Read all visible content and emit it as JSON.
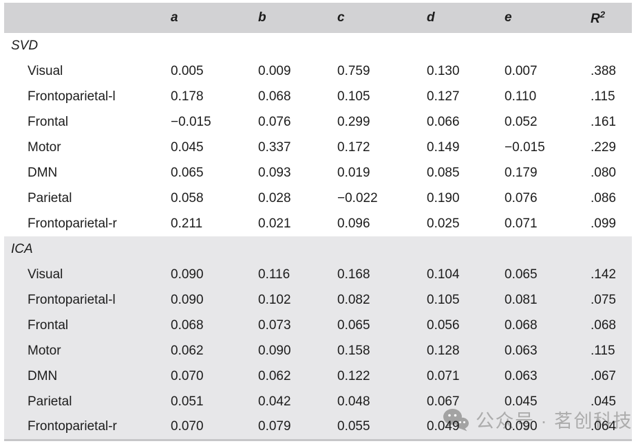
{
  "table": {
    "column_headers": [
      "a",
      "b",
      "c",
      "d",
      "e"
    ],
    "r2_header": {
      "base": "R",
      "superscript": "2"
    },
    "sections": [
      {
        "label": "SVD",
        "rows": [
          {
            "label": "Visual",
            "values": [
              "0.005",
              "0.009",
              "0.759",
              "0.130",
              "0.007",
              ".388"
            ]
          },
          {
            "label": "Frontoparietal-l",
            "values": [
              "0.178",
              "0.068",
              "0.105",
              "0.127",
              "0.110",
              ".115"
            ]
          },
          {
            "label": "Frontal",
            "values": [
              "−0.015",
              "0.076",
              "0.299",
              "0.066",
              "0.052",
              ".161"
            ]
          },
          {
            "label": "Motor",
            "values": [
              "0.045",
              "0.337",
              "0.172",
              "0.149",
              "−0.015",
              ".229"
            ]
          },
          {
            "label": "DMN",
            "values": [
              "0.065",
              "0.093",
              "0.019",
              "0.085",
              "0.179",
              ".080"
            ]
          },
          {
            "label": "Parietal",
            "values": [
              "0.058",
              "0.028",
              "−0.022",
              "0.190",
              "0.076",
              ".086"
            ]
          },
          {
            "label": "Frontoparietal-r",
            "values": [
              "0.211",
              "0.021",
              "0.096",
              "0.025",
              "0.071",
              ".099"
            ]
          }
        ]
      },
      {
        "label": "ICA",
        "rows": [
          {
            "label": "Visual",
            "values": [
              "0.090",
              "0.116",
              "0.168",
              "0.104",
              "0.065",
              ".142"
            ]
          },
          {
            "label": "Frontoparietal-l",
            "values": [
              "0.090",
              "0.102",
              "0.082",
              "0.105",
              "0.081",
              ".075"
            ]
          },
          {
            "label": "Frontal",
            "values": [
              "0.068",
              "0.073",
              "0.065",
              "0.056",
              "0.068",
              ".068"
            ]
          },
          {
            "label": "Motor",
            "values": [
              "0.062",
              "0.090",
              "0.158",
              "0.128",
              "0.063",
              ".115"
            ]
          },
          {
            "label": "DMN",
            "values": [
              "0.070",
              "0.062",
              "0.122",
              "0.071",
              "0.063",
              ".067"
            ]
          },
          {
            "label": "Parietal",
            "values": [
              "0.051",
              "0.042",
              "0.048",
              "0.067",
              "0.045",
              ".045"
            ]
          },
          {
            "label": "Frontoparietal-r",
            "values": [
              "0.070",
              "0.079",
              "0.055",
              "0.049",
              "0.090",
              ".064"
            ]
          }
        ]
      }
    ]
  },
  "watermark": {
    "icon": "wechat-icon",
    "text": "公众号 · 茗创科技"
  },
  "colors": {
    "header_band": "#d2d2d4",
    "ica_band": "#e7e7e9",
    "bottom_rule": "#c6c6c8",
    "text": "#1c1c1c",
    "watermark": "#acacac"
  }
}
